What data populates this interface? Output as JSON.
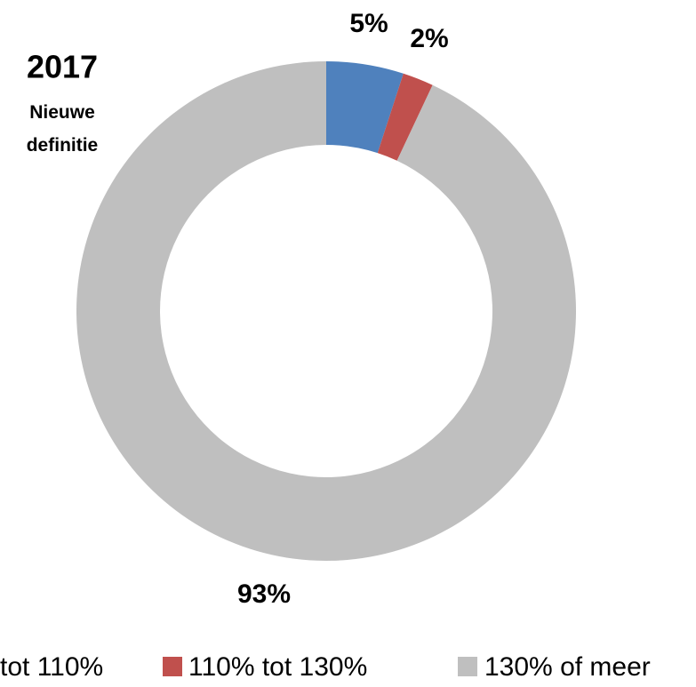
{
  "chart_data": {
    "type": "donut",
    "title": "2017",
    "subtitle": "Nieuwe definitie",
    "categories": [
      "tot 110%",
      "110% tot 130%",
      "130% of meer"
    ],
    "values": [
      5,
      2,
      93
    ],
    "value_labels": [
      "5%",
      "2%",
      "93%"
    ],
    "colors": [
      "#4f81bd",
      "#c0504d",
      "#bfbfbf"
    ],
    "legend": "bottom"
  }
}
